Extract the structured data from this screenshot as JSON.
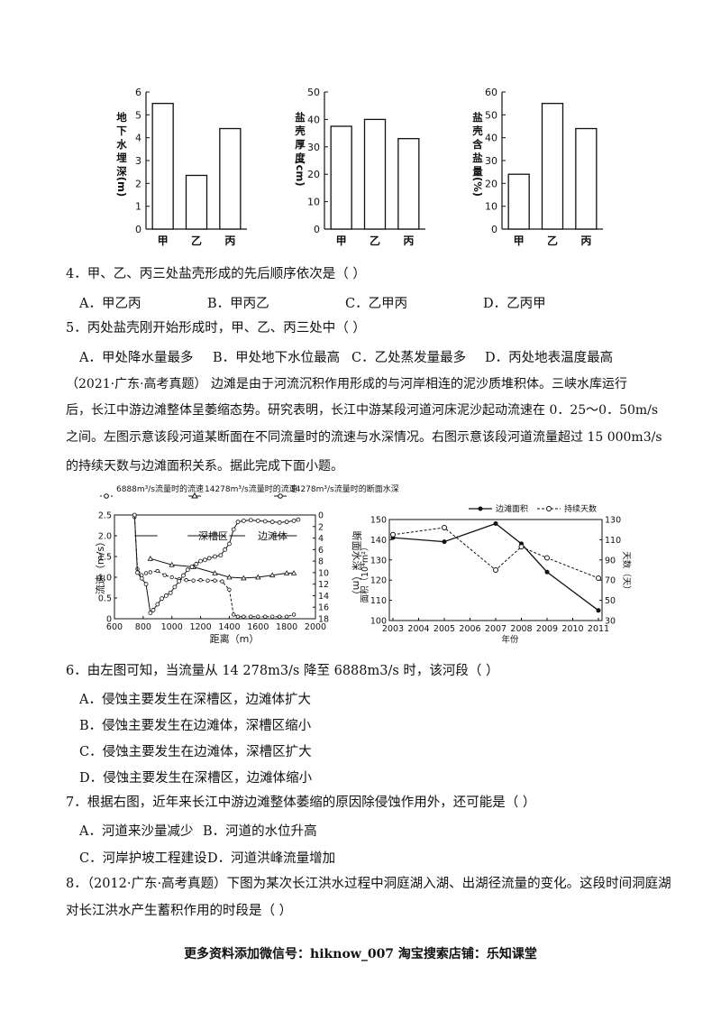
{
  "top_charts": [
    {
      "type": "bar",
      "categories": [
        "甲",
        "乙",
        "丙"
      ],
      "values": [
        5.5,
        2.35,
        4.4
      ],
      "ylim": [
        0,
        6
      ],
      "yticks": [
        "0",
        "1",
        "2",
        "3",
        "4",
        "5",
        "6"
      ],
      "ylabel_chars": [
        "地",
        "下",
        "水",
        "埋",
        "深"
      ],
      "ylabel_unit": "(m)"
    },
    {
      "type": "bar",
      "categories": [
        "甲",
        "乙",
        "丙"
      ],
      "values": [
        37.5,
        40,
        33
      ],
      "ylim": [
        0,
        50
      ],
      "yticks": [
        "0",
        "10",
        "20",
        "30",
        "40",
        "50"
      ],
      "ylabel_chars": [
        "盐",
        "壳",
        "厚",
        "度"
      ],
      "ylabel_unit": "(cm)"
    },
    {
      "type": "bar",
      "categories": [
        "甲",
        "乙",
        "丙"
      ],
      "values": [
        24,
        55,
        44
      ],
      "ylim": [
        0,
        60
      ],
      "yticks": [
        "0",
        "10",
        "20",
        "30",
        "40",
        "50",
        "60"
      ],
      "ylabel_chars": [
        "盐",
        "壳",
        "含",
        "盐",
        "量"
      ],
      "ylabel_unit": "(%)"
    }
  ],
  "q4": {
    "text": "4．甲、乙、丙三处盐壳形成的先后顺序依次是（          ）",
    "options": [
      "A．甲乙丙",
      "B．甲丙乙",
      "C．乙甲丙",
      "D．乙丙甲"
    ]
  },
  "q5": {
    "text": "5．丙处盐壳刚开始形成时，甲、乙、丙三处中（          ）",
    "options": [
      "A．甲处降水量最多",
      "B．甲处地下水位最高",
      "C．乙处蒸发量最多",
      "D．丙处地表温度最高"
    ]
  },
  "intro": {
    "lines": [
      "（2021·广东·高考真题）  边滩是由于河流沉积作用形成的与河岸相连的泥沙质堆积体。三峡水库运行",
      "后，长江中游边滩整体呈萎缩态势。研究表明，长江中游某段河道河床泥沙起动流速在 0．25～0．50m/s",
      "之间。左图示意该段河道某断面在不同流量时的流速与水深情况。右图示意该段河道流量超过 15 000m3/s",
      "的持续天数与边滩面积关系。据此完成下面小题。"
    ]
  },
  "left_chart": {
    "type": "line",
    "legend": [
      "6888m³/s流量时的流速",
      "14278m³/s流量时的流速",
      "14278m³/s流量时的断面水深"
    ],
    "xlabel": "距离（m）",
    "ylabel_left": "流速（m/s）",
    "ylabel_right": "断面水深（m）",
    "xticks": [
      "600",
      "800",
      "1000",
      "1200",
      "1400",
      "1600",
      "1800",
      "2000"
    ],
    "yticks_left": [
      "0",
      "0.5",
      "1.0",
      "1.5",
      "2.0",
      "2.5"
    ],
    "yticks_right": [
      "0",
      "2",
      "4",
      "6",
      "8",
      "10",
      "12",
      "14",
      "16",
      "18"
    ],
    "annotations": [
      "深槽区",
      "边滩体"
    ],
    "series": [
      {
        "x": [
          740,
          760,
          790,
          820,
          850,
          900,
          950,
          1000,
          1050,
          1100,
          1150,
          1200,
          1250,
          1300,
          1350,
          1400,
          1430,
          1460,
          1500,
          1550,
          1600,
          1650,
          1700,
          1750,
          1800,
          1850
        ],
        "y": [
          2.45,
          1.2,
          1.05,
          1.1,
          1.12,
          1.15,
          1.05,
          1.0,
          0.95,
          0.93,
          0.92,
          0.93,
          0.92,
          0.92,
          0.9,
          0.7,
          0.1,
          0.05,
          0.05,
          0.05,
          0.05,
          0.05,
          0.05,
          0.05,
          0.05,
          0.1
        ]
      },
      {
        "x": [
          850,
          1000,
          1150,
          1300,
          1400,
          1500,
          1600,
          1700,
          1800,
          1850
        ],
        "y": [
          1.45,
          1.3,
          1.25,
          1.1,
          1.0,
          0.98,
          1.0,
          1.05,
          1.1,
          1.1
        ]
      },
      {
        "x": [
          740,
          760,
          790,
          820,
          850,
          870,
          900,
          930,
          960,
          990,
          1020,
          1050,
          1080,
          1110,
          1140,
          1170,
          1200,
          1230,
          1260,
          1300,
          1340,
          1370,
          1400,
          1430,
          1460,
          1500,
          1550,
          1600,
          1650,
          1700,
          1750,
          1800,
          1850,
          1880
        ],
        "y": [
          0,
          10,
          11,
          12,
          17,
          16.5,
          15.5,
          14.5,
          14,
          13.5,
          12.5,
          11.5,
          10.5,
          9.5,
          9,
          8.5,
          8,
          7.8,
          7.5,
          7.2,
          7,
          6,
          5,
          2.5,
          1.2,
          1,
          0.9,
          1,
          1.1,
          1.2,
          1.3,
          1.2,
          1.0,
          0.8
        ]
      }
    ],
    "xlim": [
      600,
      2000
    ],
    "ylim_left": [
      0,
      2.5
    ],
    "ylim_right": [
      0,
      18
    ]
  },
  "right_chart": {
    "type": "line",
    "legend": [
      "边滩面积",
      "持续天数"
    ],
    "xlabel": "年份",
    "ylabel_left": "面积（10⁴m²）",
    "ylabel_right": "天数（天）",
    "xticks": [
      "2003",
      "2004",
      "2005",
      "2006",
      "2007",
      "2008",
      "2009",
      "2010",
      "2011"
    ],
    "yticks_left": [
      "100",
      "110",
      "120",
      "130",
      "140",
      "150"
    ],
    "yticks_right": [
      "30",
      "50",
      "70",
      "90",
      "110",
      "130"
    ],
    "area": {
      "x": [
        2003,
        2005,
        2007,
        2008,
        2009,
        2011
      ],
      "y": [
        141,
        139,
        148,
        138,
        124,
        105
      ]
    },
    "days": {
      "x": [
        2003,
        2005,
        2007,
        2008,
        2009,
        2011
      ],
      "y": [
        115,
        122,
        80,
        103,
        92,
        72
      ]
    },
    "xlim": [
      2003,
      2011
    ],
    "ylim_left": [
      100,
      150
    ],
    "ylim_right": [
      30,
      130
    ]
  },
  "q6": {
    "text": "6．由左图可知，当流量从 14 278m3/s 降至 6888m3/s 时，该河段（  ）",
    "options": [
      "A．侵蚀主要发生在深槽区，边滩体扩大",
      "B．侵蚀主要发生在边滩体，深槽区缩小",
      "C．侵蚀主要发生在边滩体，深槽区扩大",
      "D．侵蚀主要发生在深槽区，边滩体缩小"
    ]
  },
  "q7": {
    "text": "7．根据右图，近年来长江中游边滩整体萎缩的原因除侵蚀作用外，还可能是（          ）",
    "options": [
      "A．河道来沙量减少",
      "B．河道的水位升高",
      "C．河岸护坡工程建设",
      "D．河道洪峰流量增加"
    ]
  },
  "q8": {
    "lines": [
      "8．（2012·广东·高考真题）下图为某次长江洪水过程中洞庭湖入湖、出湖径流量的变化。这段时间洞庭湖",
      "对长江洪水产生蓄积作用的时段是（          ）"
    ]
  },
  "footer": "更多资料添加微信号：hiknow_007   淘宝搜索店铺：乐知课堂"
}
